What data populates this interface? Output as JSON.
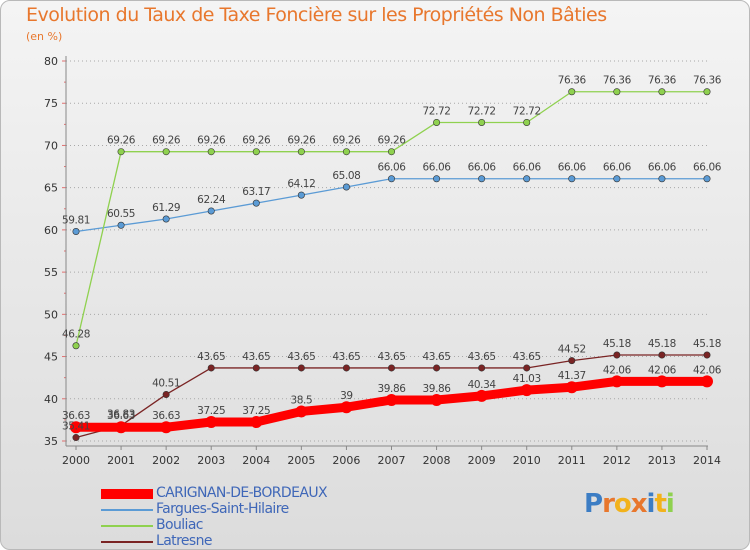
{
  "chart_data": {
    "type": "line",
    "title": "Evolution du Taux de Taxe Foncière sur les Propriétés Non Bâties",
    "subtitle": "(en %)",
    "x": [
      "2000",
      "2001",
      "2002",
      "2003",
      "2004",
      "2005",
      "2006",
      "2007",
      "2008",
      "2009",
      "2010",
      "2011",
      "2012",
      "2013",
      "2014"
    ],
    "yticks": [
      35,
      40,
      45,
      50,
      55,
      60,
      65,
      70,
      75,
      80
    ],
    "ylim": [
      35,
      80
    ],
    "grid": "horizontal dotted",
    "legend_position": "bottom-left",
    "series": [
      {
        "name": "CARIGNAN-DE-BORDEAUX",
        "color": "#ff0000",
        "values": [
          36.63,
          36.63,
          36.63,
          37.25,
          37.25,
          38.5,
          39,
          39.86,
          39.86,
          40.34,
          41.03,
          41.37,
          42.06,
          42.06,
          42.06
        ],
        "labels": [
          "36.63",
          "36.63",
          "36.63",
          "37.25",
          "37.25",
          "38.5",
          "39",
          "39.86",
          "39.86",
          "40.34",
          "41.03",
          "41.37",
          "42.06",
          "42.06",
          "42.06"
        ]
      },
      {
        "name": "Fargues-Saint-Hilaire",
        "color": "#5b9bd5",
        "values": [
          59.81,
          60.55,
          61.29,
          62.24,
          63.17,
          64.12,
          65.08,
          66.06,
          66.06,
          66.06,
          66.06,
          66.06,
          66.06,
          66.06,
          66.06
        ],
        "labels": [
          "59.81",
          "60.55",
          "61.29",
          "62.24",
          "63.17",
          "64.12",
          "65.08",
          "66.06",
          "66.06",
          "66.06",
          "66.06",
          "66.06",
          "66.06",
          "66.06",
          "66.06"
        ]
      },
      {
        "name": "Bouliac",
        "color": "#8fd14f",
        "values": [
          46.28,
          69.26,
          69.26,
          69.26,
          69.26,
          69.26,
          69.26,
          69.26,
          72.72,
          72.72,
          72.72,
          76.36,
          76.36,
          76.36,
          76.36
        ],
        "labels": [
          "46.28",
          "69.26",
          "69.26",
          "69.26",
          "69.26",
          "69.26",
          "69.26",
          "69.26",
          "72.72",
          "72.72",
          "72.72",
          "76.36",
          "76.36",
          "76.36",
          "76.36"
        ]
      },
      {
        "name": "Latresne",
        "color": "#7a2424",
        "values": [
          35.41,
          36.83,
          40.51,
          43.65,
          43.65,
          43.65,
          43.65,
          43.65,
          43.65,
          43.65,
          43.65,
          44.52,
          45.18,
          45.18,
          45.18
        ],
        "labels": [
          "35.41",
          "36.83",
          "40.51",
          "43.65",
          "43.65",
          "43.65",
          "43.65",
          "43.65",
          "43.65",
          "43.65",
          "43.65",
          "44.52",
          "45.18",
          "45.18",
          "45.18"
        ]
      }
    ]
  },
  "logo": {
    "letters": [
      "P",
      "r",
      "o",
      "x",
      "i",
      "t",
      "i"
    ],
    "colors": [
      "#3c7dc4",
      "#e8772d",
      "#f2b21b",
      "#e8772d",
      "#3c7dc4",
      "#f2b21b",
      "#8fd14f"
    ]
  }
}
